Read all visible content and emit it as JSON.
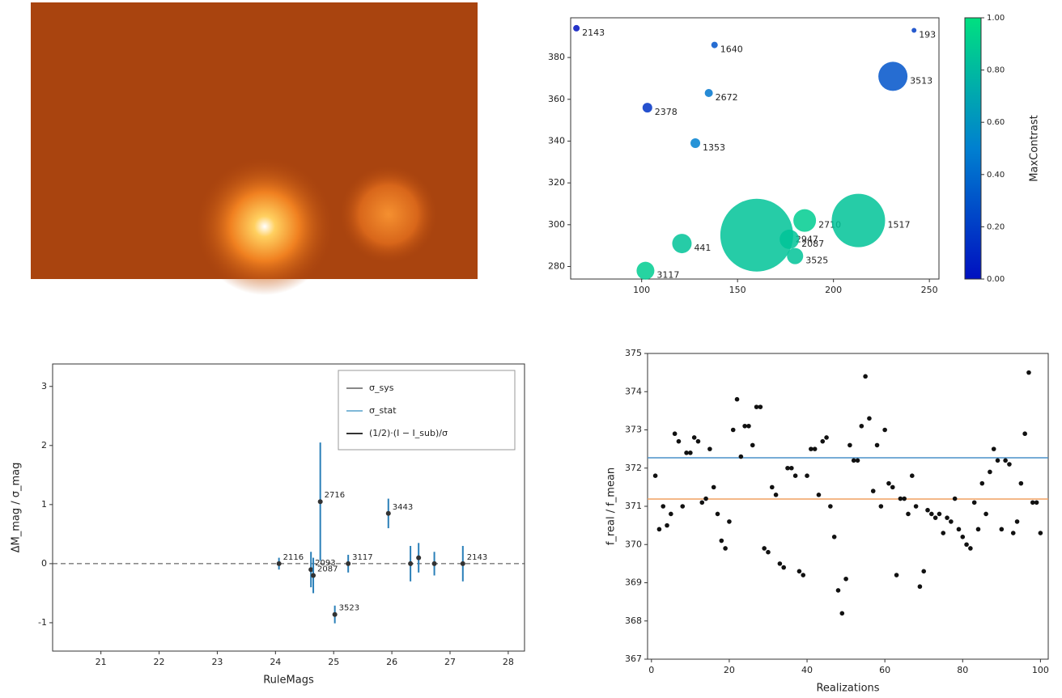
{
  "chart_data": [
    {
      "type": "bubble",
      "x": [
        66,
        138,
        135,
        103,
        128,
        242,
        231,
        121,
        160,
        185,
        177,
        180,
        213,
        102
      ],
      "values": [
        394,
        386,
        363,
        356,
        339,
        393,
        371,
        291,
        295,
        302,
        293,
        285,
        302,
        278
      ],
      "sizes": [
        4,
        4,
        5,
        6,
        6,
        3,
        18,
        12,
        45,
        14,
        12,
        10,
        33,
        11
      ],
      "color_values": [
        0.0,
        0.3,
        0.45,
        0.15,
        0.5,
        0.2,
        0.3,
        0.85,
        0.85,
        0.9,
        0.85,
        0.85,
        0.85,
        0.9
      ],
      "point_labels": [
        "2143",
        "1640",
        "2672",
        "2378",
        "1353",
        "193",
        "3513",
        "441",
        "2947",
        "2710",
        "2087",
        "3525",
        "1517",
        "3117"
      ],
      "xlim": [
        63,
        255
      ],
      "ylim": [
        274,
        399
      ],
      "xticks": [
        100,
        150,
        200,
        250
      ],
      "yticks": [
        280,
        300,
        320,
        340,
        360,
        380
      ],
      "colorbar": {
        "label": "MaxContrast",
        "lim": [
          0,
          1
        ],
        "ticks": [
          {
            "value": 0,
            "label": "0.00"
          },
          {
            "value": 0.2,
            "label": "0.20"
          },
          {
            "value": 0.4,
            "label": "0.40"
          },
          {
            "value": 0.6,
            "label": "0.60"
          },
          {
            "value": 0.8,
            "label": "0.80"
          },
          {
            "value": 1,
            "label": "1.00"
          }
        ]
      }
    },
    {
      "type": "errorbar",
      "xlabel": "RuleMags",
      "ylabel": "ΔM_mag / σ_mag",
      "x": [
        24.77,
        24.06,
        24.61,
        24.65,
        25.25,
        25.94,
        25.02,
        26.32,
        26.46,
        26.73,
        27.22
      ],
      "values": [
        1.05,
        0,
        -0.1,
        -0.2,
        0,
        0.85,
        -0.86,
        0,
        0.1,
        0,
        0
      ],
      "errors": [
        1.0,
        0.1,
        0.3,
        0.3,
        0.15,
        0.25,
        0.15,
        0.3,
        0.25,
        0.2,
        0.3
      ],
      "point_labels": [
        "2716",
        "2116",
        "2093",
        "2087",
        "3117",
        "3443",
        "3523",
        null,
        null,
        null,
        "2143"
      ],
      "color": "#2a7fb8",
      "hline": 0,
      "xlim": [
        20.17,
        28.28
      ],
      "ylim": [
        -1.48,
        3.38
      ],
      "xticks": [
        21,
        22,
        23,
        24,
        25,
        26,
        27,
        28
      ],
      "yticks": [
        -1,
        0,
        1,
        2,
        3
      ],
      "legend": [
        {
          "name": "σ_sys",
          "color": "#888888"
        },
        {
          "name": "σ_stat",
          "color": "#7fb8d8"
        },
        {
          "name": "(1/2)·(I − I_sub)/σ",
          "color": "#333333"
        }
      ]
    },
    {
      "type": "scatter",
      "xlabel": "Realizations",
      "ylabel": "f_real / f_mean",
      "x": [
        1,
        2,
        3,
        4,
        5,
        6,
        7,
        8,
        9,
        10,
        11,
        12,
        13,
        14,
        15,
        16,
        17,
        18,
        19,
        20,
        21,
        22,
        23,
        24,
        25,
        26,
        27,
        28,
        29,
        30,
        31,
        32,
        33,
        34,
        35,
        36,
        37,
        38,
        39,
        40,
        41,
        42,
        43,
        44,
        45,
        46,
        47,
        48,
        49,
        50,
        51,
        52,
        53,
        54,
        55,
        56,
        57,
        58,
        59,
        60,
        61,
        62,
        63,
        64,
        65,
        66,
        67,
        68,
        69,
        70,
        71,
        72,
        73,
        74,
        75,
        76,
        77,
        78,
        79,
        80,
        81,
        82,
        83,
        84,
        85,
        86,
        87,
        88,
        89,
        90,
        91,
        92,
        93,
        94,
        95,
        96,
        97,
        98,
        99,
        100
      ],
      "values": [
        371.8,
        370.4,
        371.0,
        370.5,
        370.8,
        372.9,
        372.7,
        371.0,
        372.4,
        372.4,
        372.8,
        372.7,
        371.1,
        371.2,
        372.5,
        371.5,
        370.8,
        370.1,
        369.9,
        370.6,
        373.0,
        373.8,
        372.3,
        373.1,
        373.1,
        372.6,
        373.6,
        373.6,
        369.9,
        369.8,
        371.5,
        371.3,
        369.5,
        369.4,
        372.0,
        372.0,
        371.8,
        369.3,
        369.2,
        371.8,
        372.5,
        372.5,
        371.3,
        372.7,
        372.8,
        371.0,
        370.2,
        368.8,
        368.2,
        369.1,
        372.6,
        372.2,
        372.2,
        373.1,
        374.4,
        373.3,
        371.4,
        372.6,
        371.0,
        373.0,
        371.6,
        371.5,
        369.2,
        371.2,
        371.2,
        370.8,
        371.8,
        371.0,
        368.9,
        369.3,
        370.9,
        370.8,
        370.7,
        370.8,
        370.3,
        370.7,
        370.6,
        371.2,
        370.4,
        370.2,
        370.0,
        369.9,
        371.1,
        370.4,
        371.6,
        370.8,
        371.9,
        372.5,
        372.2,
        370.4,
        372.2,
        372.1,
        370.3,
        370.6,
        371.6,
        372.9,
        374.5,
        371.1,
        371.1,
        370.3
      ],
      "color": "#111111",
      "hlines": [
        {
          "value": 372.27,
          "color": "#4a90c8"
        },
        {
          "value": 371.19,
          "color": "#f0a060"
        }
      ],
      "xlim": [
        -1,
        102
      ],
      "ylim": [
        367,
        375
      ],
      "xticks": [
        0,
        20,
        40,
        60,
        80,
        100
      ],
      "yticks": [
        367,
        368,
        369,
        370,
        371,
        372,
        373,
        374,
        375
      ]
    }
  ]
}
